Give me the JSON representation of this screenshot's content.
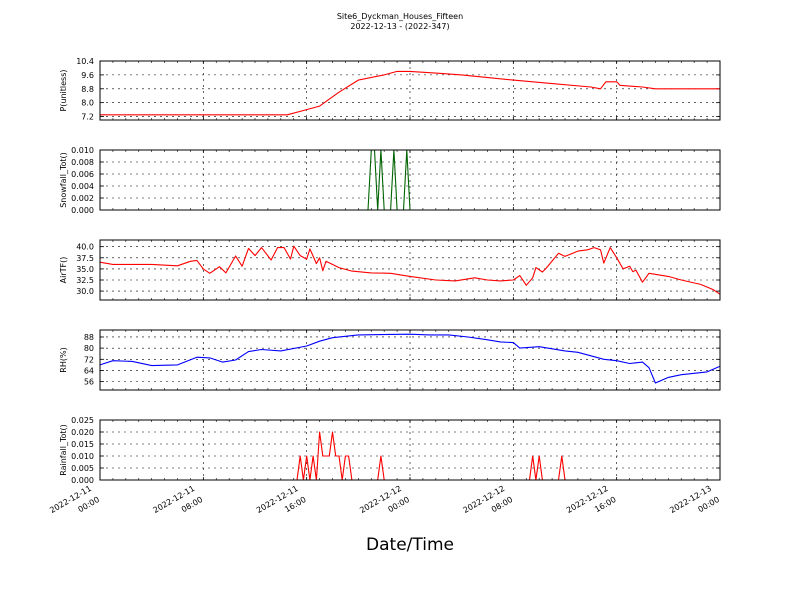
{
  "chart_data": {
    "type": "line",
    "title": "Site6_Dyckman_Houses_Fifteen",
    "subtitle": "2022-12-13 - (2022-347)",
    "xlabel": "Date/Time",
    "x_ticks": [
      {
        "time": "2022-12-11 00:00",
        "line1": "2022-12-11",
        "line2": "00:00"
      },
      {
        "time": "2022-12-11 08:00",
        "line1": "2022-12-11",
        "line2": "08:00"
      },
      {
        "time": "2022-12-11 16:00",
        "line1": "2022-12-11",
        "line2": "16:00"
      },
      {
        "time": "2022-12-12 00:00",
        "line1": "2022-12-12",
        "line2": "00:00"
      },
      {
        "time": "2022-12-12 08:00",
        "line1": "2022-12-12",
        "line2": "08:00"
      },
      {
        "time": "2022-12-12 16:00",
        "line1": "2022-12-12",
        "line2": "16:00"
      },
      {
        "time": "2022-12-13 00:00",
        "line1": "2022-12-13",
        "line2": "00:00"
      }
    ],
    "xlim": [
      "2022-12-11 00:00",
      "2022-12-13 00:00"
    ],
    "grid": true,
    "panels": [
      {
        "ylabel": "P(unitless)",
        "color": "#ff0000",
        "ylim": [
          7.0,
          10.4
        ],
        "yticks": [
          7.2,
          8.0,
          8.8,
          9.6,
          10.4
        ],
        "tick_labels": [
          "7.2",
          "8.0",
          "8.8",
          "9.6",
          "10.4"
        ],
        "points": [
          [
            "2022-12-11 00:00",
            7.3
          ],
          [
            "2022-12-11 09:00",
            7.3
          ],
          [
            "2022-12-11 14:30",
            7.3
          ],
          [
            "2022-12-11 16:00",
            7.6
          ],
          [
            "2022-12-11 17:00",
            7.8
          ],
          [
            "2022-12-11 18:30",
            8.6
          ],
          [
            "2022-12-11 20:00",
            9.3
          ],
          [
            "2022-12-11 22:00",
            9.6
          ],
          [
            "2022-12-11 23:00",
            9.8
          ],
          [
            "2022-12-12 00:00",
            9.8
          ],
          [
            "2022-12-12 02:00",
            9.7
          ],
          [
            "2022-12-12 04:00",
            9.6
          ],
          [
            "2022-12-12 08:00",
            9.3
          ],
          [
            "2022-12-12 11:00",
            9.1
          ],
          [
            "2022-12-12 14:00",
            8.9
          ],
          [
            "2022-12-12 14:45",
            8.8
          ],
          [
            "2022-12-12 15:10",
            9.2
          ],
          [
            "2022-12-12 16:00",
            9.2
          ],
          [
            "2022-12-12 16:15",
            9.0
          ],
          [
            "2022-12-12 18:00",
            8.9
          ],
          [
            "2022-12-12 19:00",
            8.8
          ],
          [
            "2022-12-12 21:00",
            8.8
          ],
          [
            "2022-12-13 00:00",
            8.8
          ]
        ]
      },
      {
        "ylabel": "Snowfall_Tot()",
        "color": "#006400",
        "ylim": [
          0.0,
          0.01
        ],
        "yticks": [
          0.0,
          0.002,
          0.004,
          0.006,
          0.008,
          0.01
        ],
        "tick_labels": [
          "0.000",
          "0.002",
          "0.004",
          "0.006",
          "0.008",
          "0.010"
        ],
        "points": [
          [
            "2022-12-11 00:00",
            0
          ],
          [
            "2022-12-11 20:45",
            0
          ],
          [
            "2022-12-11 21:00",
            0.01
          ],
          [
            "2022-12-11 21:15",
            0.01
          ],
          [
            "2022-12-11 21:30",
            0
          ],
          [
            "2022-12-11 21:45",
            0.01
          ],
          [
            "2022-12-11 22:00",
            0
          ],
          [
            "2022-12-11 22:30",
            0
          ],
          [
            "2022-12-11 22:45",
            0.01
          ],
          [
            "2022-12-11 23:00",
            0
          ],
          [
            "2022-12-11 23:30",
            0
          ],
          [
            "2022-12-11 23:45",
            0.01
          ],
          [
            "2022-12-12 00:00",
            0
          ],
          [
            "2022-12-13 00:00",
            0
          ]
        ]
      },
      {
        "ylabel": "AirTF()",
        "color": "#ff0000",
        "ylim": [
          28.0,
          41.5
        ],
        "yticks": [
          30.0,
          32.5,
          35.0,
          37.5,
          40.0
        ],
        "tick_labels": [
          "30.0",
          "32.5",
          "35.0",
          "37.5",
          "40.0"
        ],
        "points": [
          [
            "2022-12-11 00:00",
            36.5
          ],
          [
            "2022-12-11 01:00",
            36.0
          ],
          [
            "2022-12-11 04:00",
            36.0
          ],
          [
            "2022-12-11 06:00",
            35.7
          ],
          [
            "2022-12-11 07:00",
            36.7
          ],
          [
            "2022-12-11 07:30",
            36.9
          ],
          [
            "2022-12-11 08:00",
            35.0
          ],
          [
            "2022-12-11 08:30",
            34.0
          ],
          [
            "2022-12-11 09:15",
            35.5
          ],
          [
            "2022-12-11 09:45",
            34.1
          ],
          [
            "2022-12-11 10:30",
            37.9
          ],
          [
            "2022-12-11 11:00",
            35.6
          ],
          [
            "2022-12-11 11:30",
            39.6
          ],
          [
            "2022-12-11 12:00",
            38.0
          ],
          [
            "2022-12-11 12:30",
            39.8
          ],
          [
            "2022-12-11 13:15",
            37.0
          ],
          [
            "2022-12-11 13:45",
            39.8
          ],
          [
            "2022-12-11 14:15",
            39.8
          ],
          [
            "2022-12-11 14:45",
            37.2
          ],
          [
            "2022-12-11 15:00",
            40.1
          ],
          [
            "2022-12-11 15:30",
            38.0
          ],
          [
            "2022-12-11 16:00",
            37.2
          ],
          [
            "2022-12-11 16:15",
            39.5
          ],
          [
            "2022-12-11 16:45",
            36.2
          ],
          [
            "2022-12-11 17:00",
            37.5
          ],
          [
            "2022-12-11 17:15",
            34.6
          ],
          [
            "2022-12-11 17:30",
            36.7
          ],
          [
            "2022-12-11 18:30",
            35.3
          ],
          [
            "2022-12-11 19:30",
            34.5
          ],
          [
            "2022-12-11 21:00",
            34.1
          ],
          [
            "2022-12-11 22:30",
            34.0
          ],
          [
            "2022-12-12 00:00",
            33.3
          ],
          [
            "2022-12-12 02:00",
            32.5
          ],
          [
            "2022-12-12 03:30",
            32.3
          ],
          [
            "2022-12-12 05:00",
            33.0
          ],
          [
            "2022-12-12 06:00",
            32.5
          ],
          [
            "2022-12-12 07:00",
            32.3
          ],
          [
            "2022-12-12 08:00",
            32.5
          ],
          [
            "2022-12-12 08:30",
            33.5
          ],
          [
            "2022-12-12 09:00",
            31.3
          ],
          [
            "2022-12-12 09:30",
            33.0
          ],
          [
            "2022-12-12 09:45",
            35.3
          ],
          [
            "2022-12-12 10:15",
            34.3
          ],
          [
            "2022-12-12 10:30",
            35.0
          ],
          [
            "2022-12-12 11:30",
            38.5
          ],
          [
            "2022-12-12 12:00",
            37.8
          ],
          [
            "2022-12-12 13:00",
            39.0
          ],
          [
            "2022-12-12 13:45",
            39.3
          ],
          [
            "2022-12-12 14:15",
            39.8
          ],
          [
            "2022-12-12 14:45",
            39.3
          ],
          [
            "2022-12-12 15:00",
            36.3
          ],
          [
            "2022-12-12 15:30",
            39.8
          ],
          [
            "2022-12-12 16:00",
            37.5
          ],
          [
            "2022-12-12 16:30",
            35.0
          ],
          [
            "2022-12-12 17:00",
            35.6
          ],
          [
            "2022-12-12 17:15",
            34.4
          ],
          [
            "2022-12-12 17:30",
            34.7
          ],
          [
            "2022-12-12 18:00",
            32.0
          ],
          [
            "2022-12-12 18:30",
            34.0
          ],
          [
            "2022-12-12 20:00",
            33.3
          ],
          [
            "2022-12-12 21:00",
            32.5
          ],
          [
            "2022-12-12 22:30",
            31.5
          ],
          [
            "2022-12-12 23:30",
            30.3
          ],
          [
            "2022-12-13 00:00",
            29.3
          ]
        ]
      },
      {
        "ylabel": "RH(%)",
        "color": "#0000ff",
        "ylim": [
          50.0,
          93.0
        ],
        "yticks": [
          56,
          64,
          72,
          80,
          88
        ],
        "tick_labels": [
          "56",
          "64",
          "72",
          "80",
          "88"
        ],
        "points": [
          [
            "2022-12-11 00:00",
            68.0
          ],
          [
            "2022-12-11 01:00",
            71.0
          ],
          [
            "2022-12-11 02:30",
            70.5
          ],
          [
            "2022-12-11 04:00",
            67.5
          ],
          [
            "2022-12-11 06:00",
            68.0
          ],
          [
            "2022-12-11 07:30",
            73.5
          ],
          [
            "2022-12-11 08:30",
            73.0
          ],
          [
            "2022-12-11 09:30",
            70.0
          ],
          [
            "2022-12-11 10:30",
            71.5
          ],
          [
            "2022-12-11 11:30",
            77.5
          ],
          [
            "2022-12-11 12:30",
            79.0
          ],
          [
            "2022-12-11 14:00",
            78.0
          ],
          [
            "2022-12-11 16:00",
            81.5
          ],
          [
            "2022-12-11 17:00",
            85.0
          ],
          [
            "2022-12-11 18:00",
            87.5
          ],
          [
            "2022-12-11 20:00",
            89.5
          ],
          [
            "2022-12-12 00:00",
            90.0
          ],
          [
            "2022-12-12 01:30",
            89.5
          ],
          [
            "2022-12-12 03:00",
            89.5
          ],
          [
            "2022-12-12 04:30",
            88.0
          ],
          [
            "2022-12-12 06:00",
            86.0
          ],
          [
            "2022-12-12 07:00",
            84.5
          ],
          [
            "2022-12-12 08:00",
            84.0
          ],
          [
            "2022-12-12 08:30",
            80.0
          ],
          [
            "2022-12-12 10:00",
            81.0
          ],
          [
            "2022-12-12 12:00",
            78.0
          ],
          [
            "2022-12-12 13:00",
            77.0
          ],
          [
            "2022-12-12 15:00",
            72.0
          ],
          [
            "2022-12-12 16:00",
            71.0
          ],
          [
            "2022-12-12 17:00",
            69.0
          ],
          [
            "2022-12-12 18:00",
            70.0
          ],
          [
            "2022-12-12 18:30",
            66.0
          ],
          [
            "2022-12-12 19:00",
            55.0
          ],
          [
            "2022-12-12 20:00",
            59.0
          ],
          [
            "2022-12-12 21:00",
            61.0
          ],
          [
            "2022-12-12 23:00",
            63.0
          ],
          [
            "2022-12-13 00:00",
            67.0
          ]
        ]
      },
      {
        "ylabel": "Rainfall_Tot()",
        "color": "#ff0000",
        "ylim": [
          0.0,
          0.025
        ],
        "yticks": [
          0.0,
          0.005,
          0.01,
          0.015,
          0.02,
          0.025
        ],
        "tick_labels": [
          "0.000",
          "0.005",
          "0.010",
          "0.015",
          "0.020",
          "0.025"
        ],
        "points": [
          [
            "2022-12-11 00:00",
            0
          ],
          [
            "2022-12-11 15:15",
            0
          ],
          [
            "2022-12-11 15:30",
            0.01
          ],
          [
            "2022-12-11 15:45",
            0
          ],
          [
            "2022-12-11 16:00",
            0.01
          ],
          [
            "2022-12-11 16:15",
            0
          ],
          [
            "2022-12-11 16:30",
            0.01
          ],
          [
            "2022-12-11 16:45",
            0
          ],
          [
            "2022-12-11 17:00",
            0.02
          ],
          [
            "2022-12-11 17:15",
            0.01
          ],
          [
            "2022-12-11 17:45",
            0.01
          ],
          [
            "2022-12-11 18:00",
            0.02
          ],
          [
            "2022-12-11 18:15",
            0.01
          ],
          [
            "2022-12-11 18:30",
            0.01
          ],
          [
            "2022-12-11 18:45",
            0
          ],
          [
            "2022-12-11 19:00",
            0.01
          ],
          [
            "2022-12-11 19:15",
            0.01
          ],
          [
            "2022-12-11 19:30",
            0
          ],
          [
            "2022-12-11 21:30",
            0
          ],
          [
            "2022-12-11 21:45",
            0.01
          ],
          [
            "2022-12-11 22:00",
            0
          ],
          [
            "2022-12-12 09:15",
            0
          ],
          [
            "2022-12-12 09:30",
            0.01
          ],
          [
            "2022-12-12 09:45",
            0
          ],
          [
            "2022-12-12 10:00",
            0.01
          ],
          [
            "2022-12-12 10:15",
            0
          ],
          [
            "2022-12-12 11:30",
            0
          ],
          [
            "2022-12-12 11:45",
            0.01
          ],
          [
            "2022-12-12 12:00",
            0
          ],
          [
            "2022-12-13 00:00",
            0
          ]
        ]
      }
    ]
  }
}
